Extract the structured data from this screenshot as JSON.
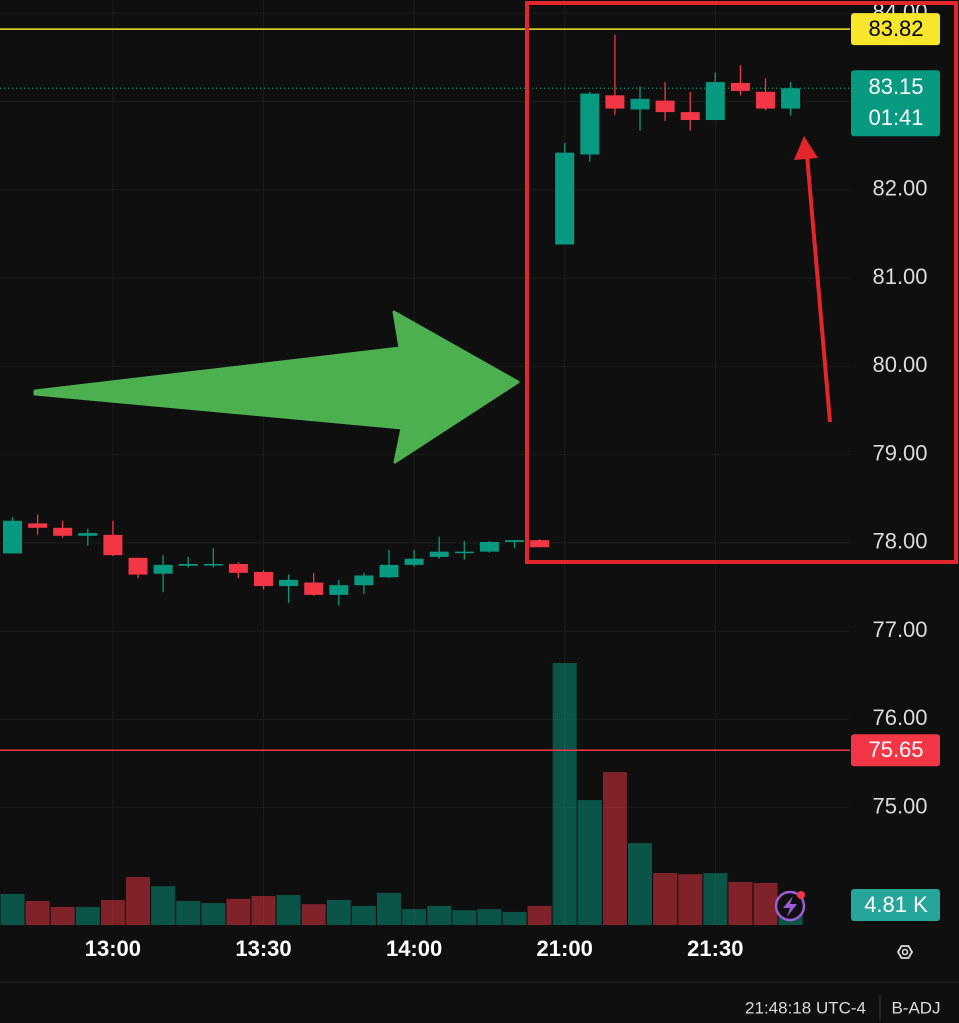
{
  "chart_data": {
    "type": "candlestick",
    "categories": [
      null,
      null,
      null,
      null,
      "13:00",
      null,
      null,
      null,
      null,
      null,
      "13:30",
      null,
      null,
      null,
      null,
      null,
      "14:00",
      null,
      null,
      null,
      null,
      null,
      "21:00",
      null,
      null,
      null,
      null,
      null,
      "21:30",
      null,
      null,
      null
    ],
    "open": [
      77.88,
      78.22,
      78.17,
      78.08,
      78.09,
      77.83,
      77.65,
      77.74,
      77.75,
      77.76,
      77.67,
      77.51,
      77.55,
      77.41,
      77.52,
      77.61,
      77.75,
      77.84,
      77.89,
      77.9,
      78.01,
      78.03,
      81.38,
      82.4,
      83.07,
      82.91,
      83.01,
      82.88,
      82.79,
      83.21,
      83.11,
      82.92
    ],
    "high": [
      78.29,
      78.32,
      78.25,
      78.16,
      78.25,
      77.83,
      77.86,
      77.84,
      77.94,
      77.78,
      77.69,
      77.64,
      77.66,
      77.58,
      77.66,
      77.92,
      77.92,
      78.07,
      78.02,
      78.02,
      78.03,
      78.04,
      82.53,
      83.11,
      83.76,
      83.17,
      83.22,
      83.11,
      83.33,
      83.41,
      83.26,
      83.22
    ],
    "low": [
      77.88,
      78.09,
      78.06,
      77.97,
      77.85,
      77.6,
      77.44,
      77.72,
      77.72,
      77.6,
      77.47,
      77.32,
      77.4,
      77.29,
      77.42,
      77.6,
      77.73,
      77.82,
      77.81,
      77.89,
      77.94,
      77.95,
      81.38,
      82.32,
      82.85,
      82.67,
      82.78,
      82.67,
      82.79,
      83.07,
      82.9,
      82.84
    ],
    "close": [
      78.25,
      78.17,
      78.08,
      78.11,
      77.86,
      77.64,
      77.75,
      77.76,
      77.76,
      77.66,
      77.51,
      77.58,
      77.41,
      77.52,
      77.63,
      77.75,
      77.82,
      77.9,
      77.9,
      78.01,
      78.03,
      77.95,
      82.42,
      83.09,
      82.92,
      83.03,
      82.88,
      82.79,
      83.22,
      83.12,
      82.92,
      83.15
    ],
    "volume": [
      8.8,
      6.8,
      5.1,
      5.1,
      7.1,
      13.6,
      11.0,
      6.8,
      6.2,
      7.4,
      8.2,
      8.5,
      5.9,
      7.1,
      5.4,
      9.1,
      4.5,
      5.4,
      4.2,
      4.5,
      3.7,
      5.4,
      74.2,
      35.4,
      43.3,
      23.2,
      14.7,
      14.4,
      14.7,
      12.2,
      11.9,
      4.81
    ],
    "volume_label": "4.81 K",
    "up_color": "#089981",
    "down_color": "#f23645",
    "ylim": [
      73.67,
      84.15
    ],
    "yticks": [
      {
        "value": 75,
        "label": "75.00"
      },
      {
        "value": 76,
        "label": "76.00"
      },
      {
        "value": 77,
        "label": "77.00"
      },
      {
        "value": 78,
        "label": "78.00"
      },
      {
        "value": 79,
        "label": "79.00"
      },
      {
        "value": 80,
        "label": "80.00"
      },
      {
        "value": 81,
        "label": "81.00"
      },
      {
        "value": 82,
        "label": "82.00"
      },
      {
        "value": 83,
        "label": "83.00"
      },
      {
        "value": 84,
        "label": "84.00"
      }
    ],
    "y2lim": [
      0,
      262
    ],
    "grid": true,
    "price_lines": [
      {
        "value": 83.82,
        "label": "83.82",
        "color": "#f7e62c",
        "text_color": "#000000"
      },
      {
        "value": 75.65,
        "label": "75.65",
        "color": "#f23645",
        "text_color": "#ffffff"
      }
    ],
    "last_price": {
      "value": 83.15,
      "label": "83.15",
      "countdown": "01:41"
    }
  },
  "status_bar": {
    "time": "21:48:18 UTC-4",
    "adjustment": "B-ADJ"
  }
}
